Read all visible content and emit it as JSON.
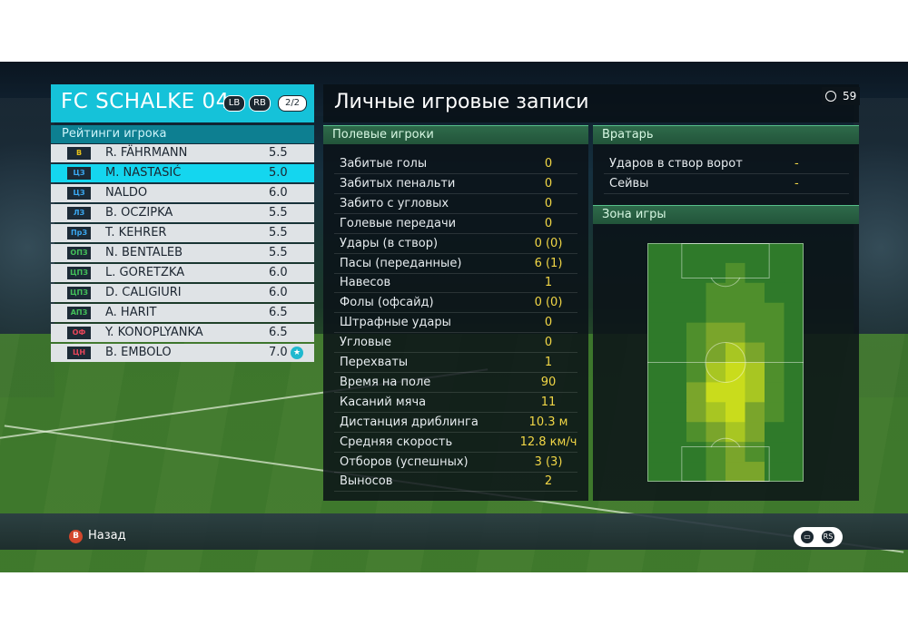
{
  "team": {
    "name": "FC SCHALKE 04",
    "badges": [
      "LB",
      "RB"
    ],
    "page": "2/2"
  },
  "roster_title": "Рейтинги игрока",
  "players": [
    {
      "pos": "В",
      "pos_color": "#e8c21a",
      "name": "R. FÄHRMANN",
      "rating": "5.5",
      "selected": false,
      "mvp": false
    },
    {
      "pos": "ЦЗ",
      "pos_color": "#3aa7f0",
      "name": "M. NASTASIĆ",
      "rating": "5.0",
      "selected": true,
      "mvp": false
    },
    {
      "pos": "ЦЗ",
      "pos_color": "#3aa7f0",
      "name": "NALDO",
      "rating": "6.0",
      "selected": false,
      "mvp": false
    },
    {
      "pos": "ЛЗ",
      "pos_color": "#3aa7f0",
      "name": "B. OCZIPKA",
      "rating": "5.5",
      "selected": false,
      "mvp": false
    },
    {
      "pos": "ПрЗ",
      "pos_color": "#3aa7f0",
      "name": "T. KEHRER",
      "rating": "5.5",
      "selected": false,
      "mvp": false
    },
    {
      "pos": "ОПЗ",
      "pos_color": "#43c05a",
      "name": "N. BENTALEB",
      "rating": "5.5",
      "selected": false,
      "mvp": false
    },
    {
      "pos": "ЦПЗ",
      "pos_color": "#43c05a",
      "name": "L. GORETZKA",
      "rating": "6.0",
      "selected": false,
      "mvp": false
    },
    {
      "pos": "ЦПЗ",
      "pos_color": "#43c05a",
      "name": "D. CALIGIURI",
      "rating": "6.0",
      "selected": false,
      "mvp": false
    },
    {
      "pos": "АПЗ",
      "pos_color": "#43c05a",
      "name": "A. HARIT",
      "rating": "6.5",
      "selected": false,
      "mvp": false
    },
    {
      "pos": "ОФ",
      "pos_color": "#e8455a",
      "name": "Y. KONOPLYANKA",
      "rating": "6.5",
      "selected": false,
      "mvp": false
    },
    {
      "pos": "ЦН",
      "pos_color": "#e8455a",
      "name": "B. EMBOLO",
      "rating": "7.0",
      "selected": false,
      "mvp": true
    }
  ],
  "main": {
    "title": "Личные игровые записи",
    "timer": "59"
  },
  "field_players": {
    "title": "Полевые игроки",
    "stats": [
      {
        "label": "Забитые голы",
        "value": "0"
      },
      {
        "label": "Забитых пенальти",
        "value": "0"
      },
      {
        "label": "Забито с угловых",
        "value": "0"
      },
      {
        "label": "Голевые передачи",
        "value": "0"
      },
      {
        "label": "Удары (в створ)",
        "value": "0 (0)"
      },
      {
        "label": "Пасы (переданные)",
        "value": "6 (1)"
      },
      {
        "label": "Навесов",
        "value": "1"
      },
      {
        "label": "Фолы (офсайд)",
        "value": "0 (0)"
      },
      {
        "label": "Штрафные удары",
        "value": "0"
      },
      {
        "label": "Угловые",
        "value": "0"
      },
      {
        "label": "Перехваты",
        "value": "1"
      },
      {
        "label": "Время на поле",
        "value": "90"
      },
      {
        "label": "Касаний мяча",
        "value": "11"
      },
      {
        "label": "Дистанция дриблинга",
        "value": "10.3 м"
      },
      {
        "label": "Средняя скорость",
        "value": "12.8 км/ч"
      },
      {
        "label": "Отборов (успешных)",
        "value": "3 (3)"
      },
      {
        "label": "Выносов",
        "value": "2"
      }
    ]
  },
  "goalkeeper": {
    "title": "Вратарь",
    "stats": [
      {
        "label": "Ударов в створ ворот",
        "value": "-"
      },
      {
        "label": "Сейвы",
        "value": "-"
      }
    ]
  },
  "zone": {
    "title": "Зона игры",
    "cols": 8,
    "rows": 12,
    "intensity": [
      [
        0,
        0,
        0,
        0,
        0,
        0,
        0,
        0
      ],
      [
        0,
        0,
        0,
        0,
        1,
        0,
        0,
        0
      ],
      [
        0,
        0,
        0,
        1,
        1,
        1,
        0,
        0
      ],
      [
        0,
        0,
        0,
        1,
        1,
        1,
        1,
        0
      ],
      [
        0,
        0,
        1,
        2,
        2,
        1,
        1,
        0
      ],
      [
        0,
        0,
        1,
        2,
        3,
        2,
        1,
        0
      ],
      [
        0,
        0,
        1,
        3,
        4,
        3,
        1,
        0
      ],
      [
        0,
        0,
        2,
        4,
        4,
        3,
        1,
        0
      ],
      [
        0,
        0,
        2,
        3,
        4,
        2,
        1,
        0
      ],
      [
        0,
        0,
        1,
        2,
        3,
        2,
        0,
        0
      ],
      [
        0,
        0,
        0,
        1,
        2,
        1,
        0,
        0
      ],
      [
        0,
        0,
        0,
        1,
        2,
        2,
        0,
        0
      ]
    ],
    "colors": [
      "#2f7a2a",
      "#4f8f2c",
      "#7aa52b",
      "#a8c622",
      "#c9dc1c"
    ]
  },
  "footer": {
    "back_key": "B",
    "back_label": "Назад",
    "chat_icon": "chat-icon",
    "rs_key": "RS"
  }
}
